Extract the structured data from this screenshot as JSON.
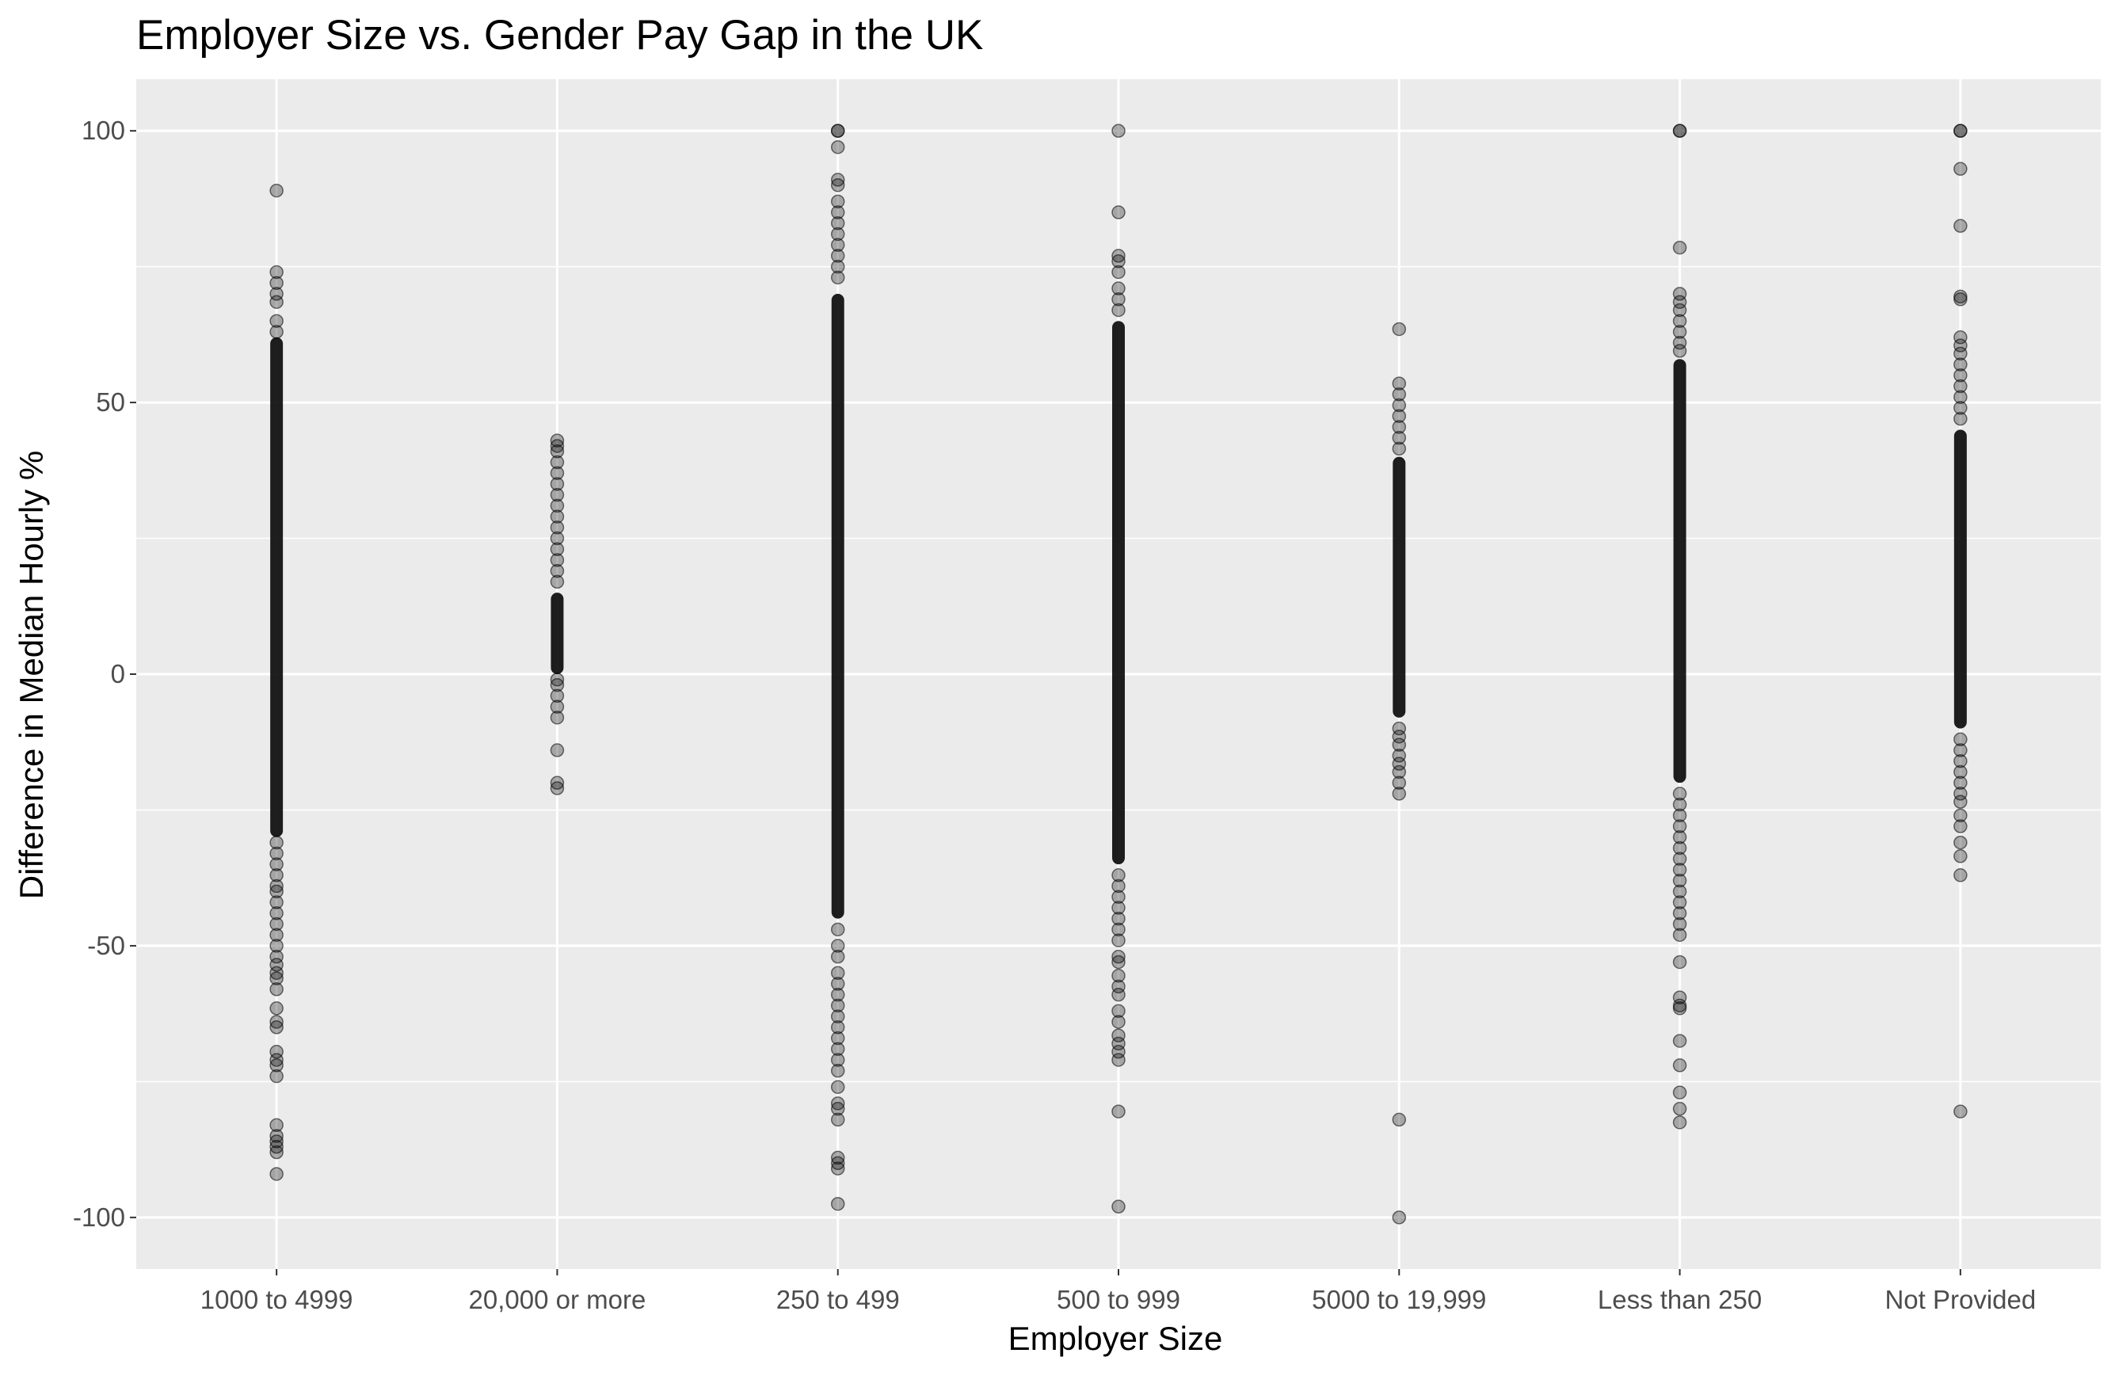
{
  "chart_data": {
    "type": "scatter",
    "title": "Employer Size vs. Gender Pay Gap in the UK",
    "xlabel": "Employer Size",
    "ylabel": "Difference in Median Hourly %",
    "categories": [
      "1000 to 4999",
      "20,000 or more",
      "250 to 499",
      "500 to 999",
      "5000 to 19,999",
      "Less than 250",
      "Not Provided"
    ],
    "y_ticks": [
      100,
      50,
      0,
      -50,
      -100
    ],
    "y_tick_labels": [
      "100",
      "50",
      "0",
      "-50",
      "-100"
    ],
    "ylim": [
      -109.5,
      109.5
    ],
    "grid": true,
    "background": "#ebebeb",
    "point_color": "#000000",
    "point_opacity": 0.3,
    "series": [
      {
        "category": "1000 to 4999",
        "dense_range": [
          -30,
          62
        ],
        "points": [
          89,
          74,
          72,
          70,
          68.5,
          65,
          63,
          -31,
          -33,
          -35,
          -37,
          -39,
          -40,
          -42,
          -44,
          -46,
          -48,
          -50,
          -52,
          -53.5,
          -55,
          -56,
          -58,
          -61.5,
          -64,
          -65,
          -69.5,
          -71,
          -72,
          -74,
          -83,
          -85,
          -86,
          -87,
          -88,
          -92
        ]
      },
      {
        "category": "20,000 or more",
        "dense_range": [
          0,
          15
        ],
        "points": [
          43,
          42,
          41,
          39,
          37,
          35,
          33,
          31,
          29,
          27,
          25,
          23,
          21,
          19,
          17,
          -1,
          -2,
          -4,
          -6,
          -8,
          -14,
          -20,
          -21
        ]
      },
      {
        "category": "250 to 499",
        "dense_range": [
          -45,
          70
        ],
        "points": [
          100,
          100,
          97,
          91,
          90,
          87,
          85,
          83,
          81,
          79,
          77,
          75,
          73,
          -47,
          -50,
          -52,
          -55,
          -57,
          -59,
          -61,
          -63,
          -65,
          -67,
          -69,
          -71,
          -73,
          -76,
          -79,
          -80,
          -82,
          -89,
          -90,
          -91,
          -97.5
        ]
      },
      {
        "category": "500 to 999",
        "dense_range": [
          -35,
          65
        ],
        "points": [
          100,
          85,
          77,
          76,
          74,
          71,
          69,
          67,
          -37,
          -39,
          -41,
          -43,
          -45,
          -47,
          -49,
          -52,
          -53,
          -55.5,
          -57.5,
          -59,
          -62,
          -64,
          -66.5,
          -68,
          -69.5,
          -71,
          -80.5,
          -98
        ]
      },
      {
        "category": "5000 to 19,999",
        "dense_range": [
          -8,
          40
        ],
        "points": [
          63.5,
          53.5,
          51.5,
          49.5,
          47.5,
          45.5,
          43.5,
          41.5,
          -10,
          -11.5,
          -13,
          -15,
          -16.5,
          -18,
          -20,
          -22,
          -82,
          -100
        ]
      },
      {
        "category": "Less than 250",
        "dense_range": [
          -20,
          58
        ],
        "points": [
          100,
          100,
          78.5,
          70,
          68.5,
          67,
          65,
          63,
          61,
          59.5,
          -22,
          -24,
          -26,
          -28,
          -30,
          -32,
          -34,
          -36,
          -38,
          -40,
          -42,
          -44,
          -46,
          -48,
          -53,
          -59.5,
          -61,
          -61.5,
          -67.5,
          -72,
          -77,
          -80,
          -82.5
        ]
      },
      {
        "category": "Not Provided",
        "dense_range": [
          -10,
          45
        ],
        "points": [
          100,
          100,
          93,
          82.5,
          69.5,
          69,
          62,
          60.5,
          59,
          57,
          55,
          53,
          51,
          49,
          47,
          -12,
          -14,
          -16,
          -18,
          -20,
          -22,
          -23.5,
          -26,
          -28,
          -31,
          -33.5,
          -37,
          -80.5
        ]
      }
    ]
  }
}
